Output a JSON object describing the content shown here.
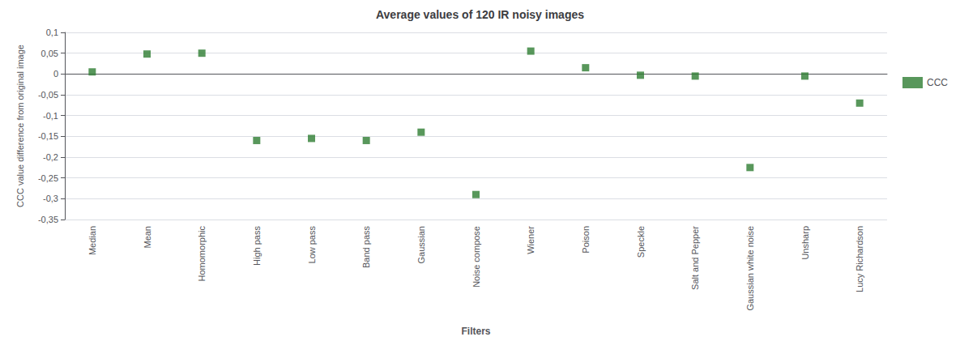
{
  "chart_data": {
    "type": "scatter",
    "title": "Average values of 120 IR noisy images",
    "x_label": "Filters",
    "y_label": "CCC value difference from original image",
    "categories": [
      "Median",
      "Mean",
      "Homomorphic",
      "High pass",
      "Low pass",
      "Band pass",
      "Gaussian",
      "Noise compose",
      "Wiener",
      "Poison",
      "Speckle",
      "Salt and Pepper",
      "Gaussian white noise",
      "Unsharp",
      "Lucy Richardson"
    ],
    "series": [
      {
        "name": "CCC",
        "color": "#2e7d32",
        "marker": "square",
        "values": [
          0.005,
          0.048,
          0.05,
          -0.16,
          -0.155,
          -0.16,
          -0.14,
          -0.29,
          0.055,
          0.015,
          -0.003,
          -0.005,
          -0.225,
          -0.005,
          -0.07
        ]
      }
    ],
    "ylim": [
      -0.35,
      0.1
    ],
    "yticks": [
      {
        "value": -0.35,
        "label": "-0,35"
      },
      {
        "value": -0.3,
        "label": "-0,3"
      },
      {
        "value": -0.25,
        "label": "-0,25"
      },
      {
        "value": -0.2,
        "label": "-0,2"
      },
      {
        "value": -0.15,
        "label": "-0,15"
      },
      {
        "value": -0.1,
        "label": "-0,1"
      },
      {
        "value": -0.05,
        "label": "-0,05"
      },
      0,
      {
        "value": 0.05,
        "label": "0,05"
      },
      {
        "value": 0.1,
        "label": "0,1"
      }
    ],
    "grid": true,
    "legend": "right"
  }
}
